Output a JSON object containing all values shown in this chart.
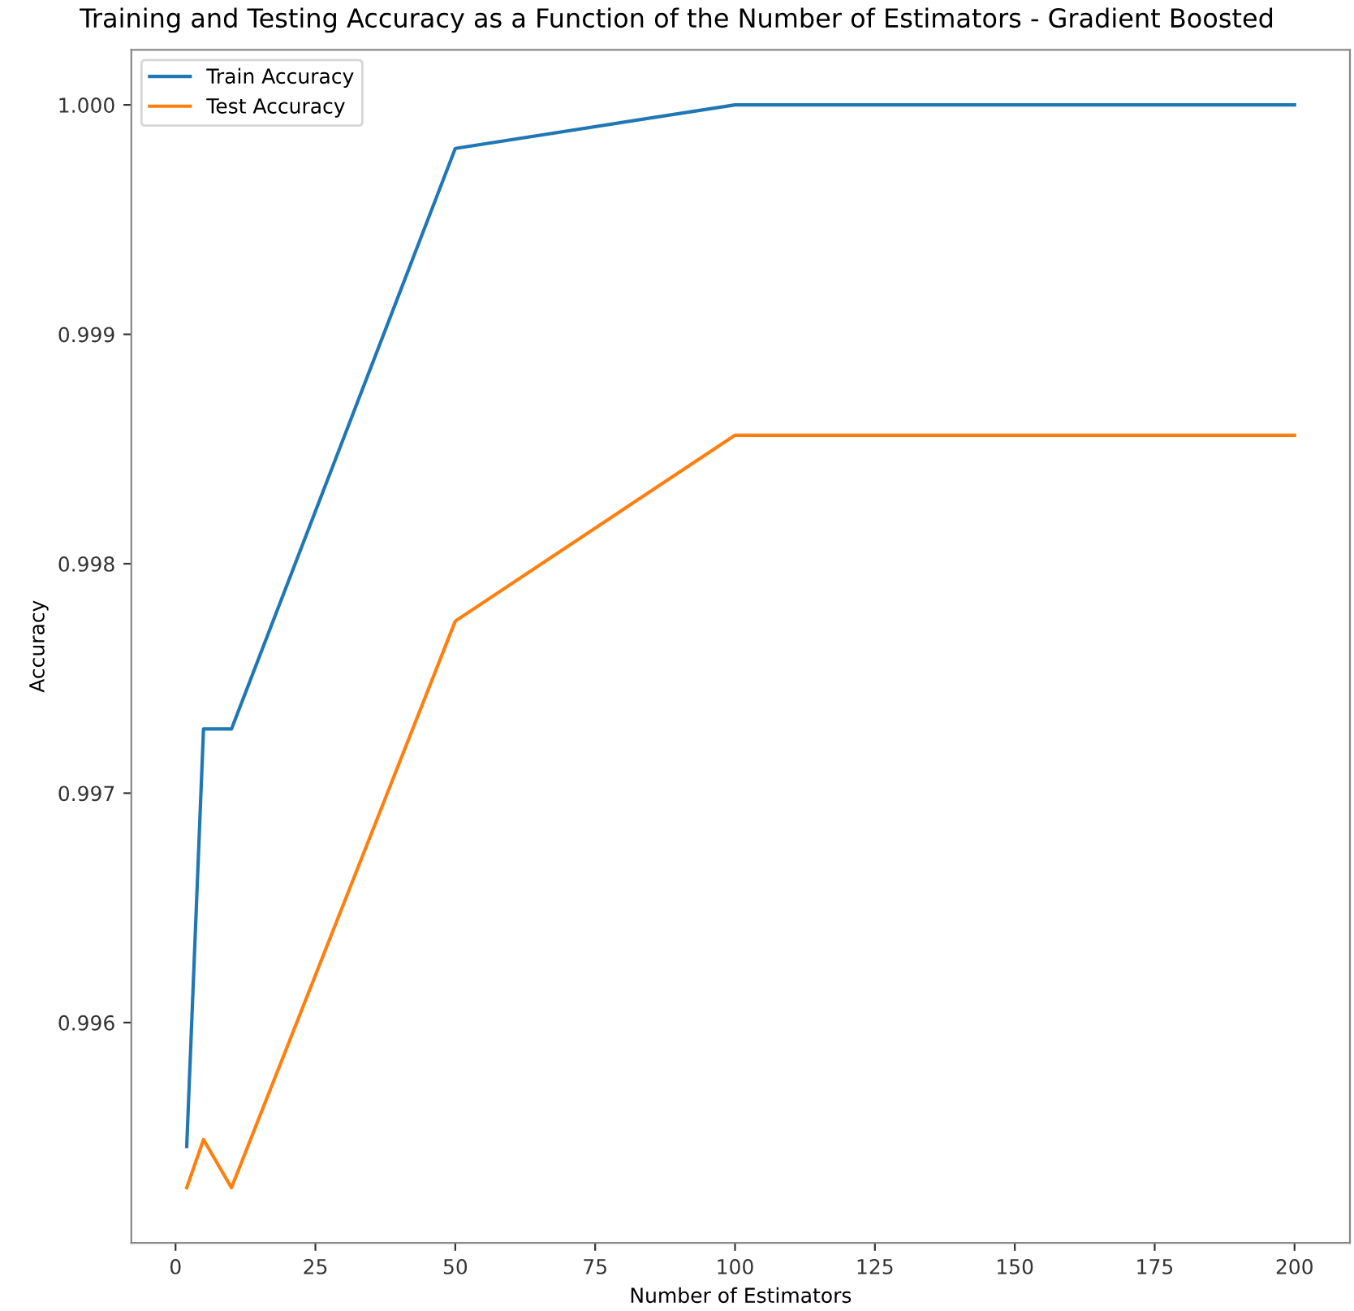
{
  "chart_data": {
    "type": "line",
    "title": "Training and Testing Accuracy as a Function of the Number of Estimators - Gradient Boosted",
    "xlabel": "Number of Estimators",
    "ylabel": "Accuracy",
    "x": [
      2,
      5,
      10,
      50,
      100,
      200
    ],
    "series": [
      {
        "name": "Train Accuracy",
        "color": "#1f77b4",
        "values": [
          0.99546,
          0.99728,
          0.99728,
          0.99981,
          1.0,
          1.0
        ]
      },
      {
        "name": "Test Accuracy",
        "color": "#ff7f0e",
        "values": [
          0.99528,
          0.99549,
          0.99528,
          0.99775,
          0.99856,
          0.99856
        ]
      }
    ],
    "xlim": [
      -7.9,
      209.9
    ],
    "ylim": [
      0.99504,
      1.00024
    ],
    "xticks": [
      0,
      25,
      50,
      75,
      100,
      125,
      150,
      175,
      200
    ],
    "yticks": [
      {
        "value": 0.996,
        "label": "0.996"
      },
      {
        "value": 0.997,
        "label": "0.997"
      },
      {
        "value": 0.998,
        "label": "0.998"
      },
      {
        "value": 0.999,
        "label": "0.999"
      },
      {
        "value": 1.0,
        "label": "1.000"
      }
    ],
    "grid": false,
    "legend": "top left",
    "marker": "none",
    "line_style": "solid"
  }
}
